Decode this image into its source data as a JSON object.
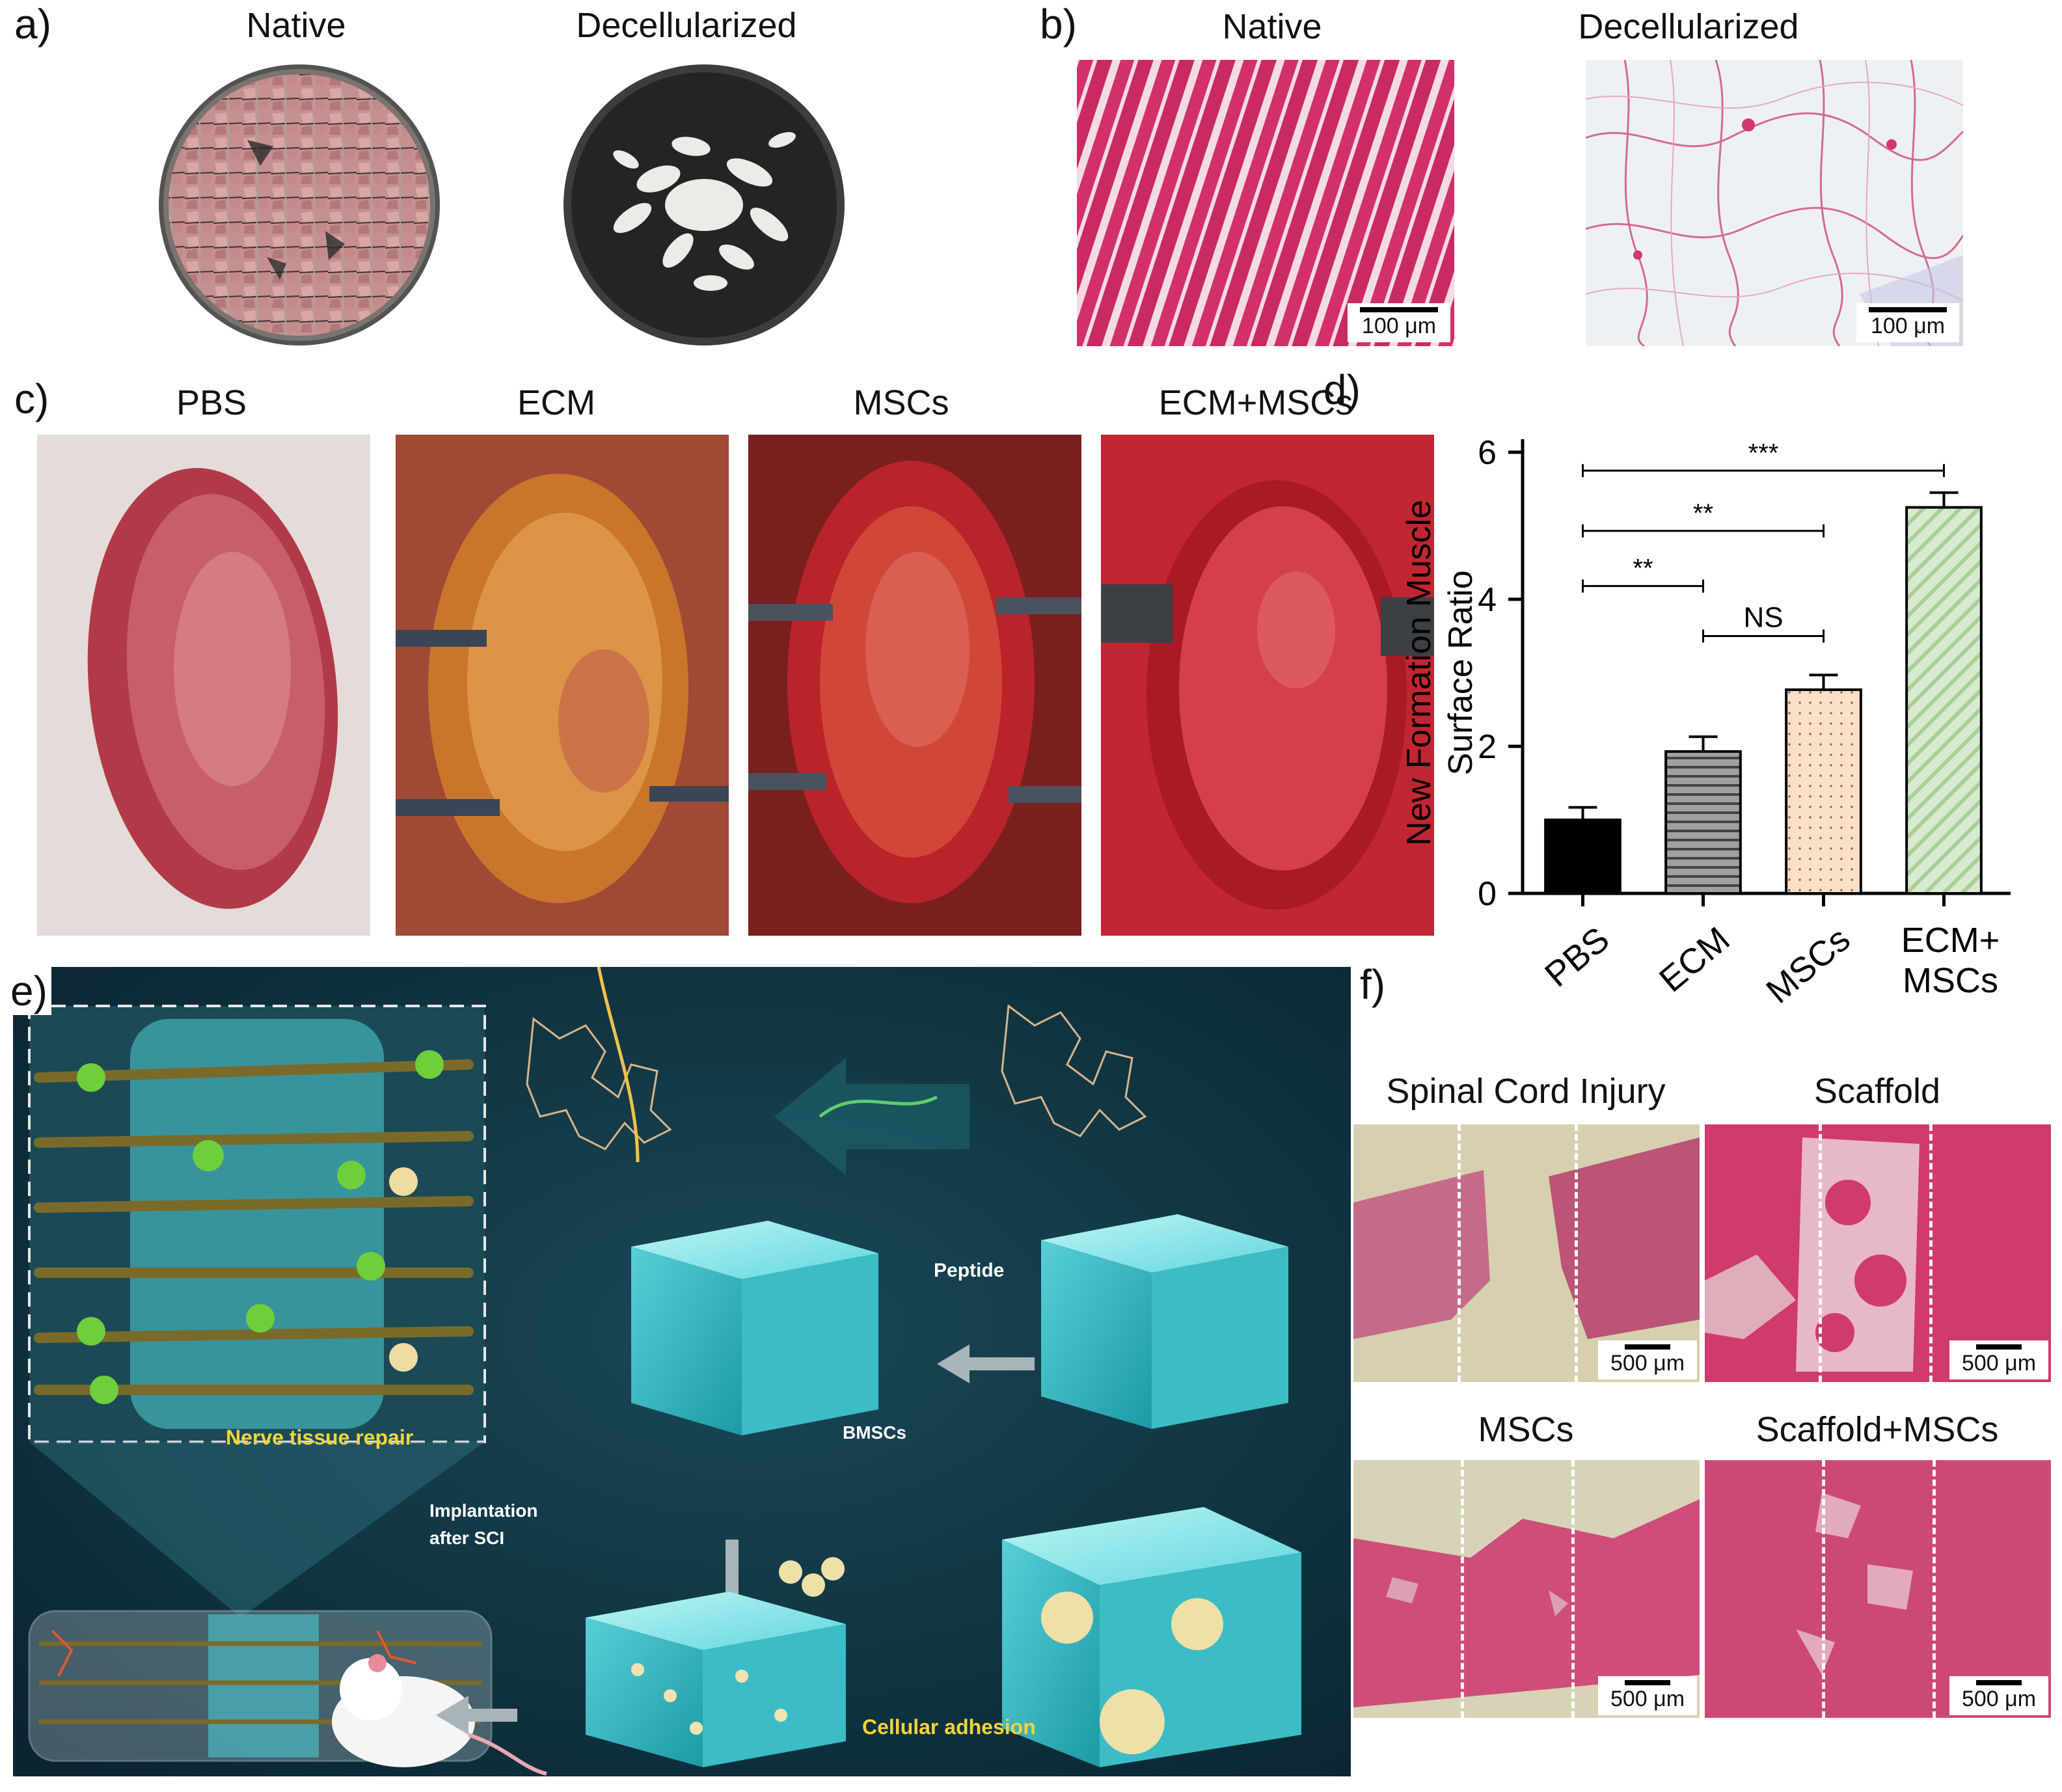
{
  "panels": {
    "a": {
      "label": "a)",
      "native_title": "Native",
      "decell_title": "Decellularized"
    },
    "b": {
      "label": "b)",
      "native_title": "Native",
      "decell_title": "Decellularized",
      "scale_native": "100 μm",
      "scale_decell": "100 μm"
    },
    "c": {
      "label": "c)",
      "titles": [
        "PBS",
        "ECM",
        "MSCs",
        "ECM+MSCs"
      ]
    },
    "d": {
      "label": "d)"
    },
    "e": {
      "label": "e)",
      "peptide": "Peptide",
      "bmscs": "BMSCs",
      "nerve_repair": "Nerve tissue repair",
      "implant_line1": "Implantation",
      "implant_line2": "after SCI",
      "cell_adhesion": "Cellular adhesion"
    },
    "f": {
      "label": "f)",
      "titles": [
        "Spinal Cord Injury",
        "Scaffold",
        "MSCs",
        "Scaffold+MSCs"
      ],
      "scale": "500 μm"
    }
  },
  "chart_data": {
    "type": "bar",
    "categories": [
      "PBS",
      "ECM",
      "MSCs",
      "ECM+\nMSCs"
    ],
    "category_lines": [
      [
        "PBS"
      ],
      [
        "ECM"
      ],
      [
        "MSCs"
      ],
      [
        "ECM+",
        "MSCs"
      ]
    ],
    "values": [
      1.0,
      1.93,
      2.77,
      5.25
    ],
    "errors": [
      0.17,
      0.2,
      0.2,
      0.2
    ],
    "ylabel": "New Formation Muscle\nSurface Ratio",
    "ylabel_lines": [
      "New Formation Muscle",
      "Surface Ratio"
    ],
    "ylim": [
      0,
      6
    ],
    "yticks": [
      0,
      2,
      4,
      6
    ],
    "bar_fills": [
      "#000000",
      "#a0a0a0",
      "#fbe0c8",
      "#d8ebd0"
    ],
    "bar_patterns": [
      "solid",
      "horizontal-lines",
      "dots",
      "diagonal-lines"
    ],
    "significance": [
      {
        "from": 0,
        "to": 3,
        "label": "***"
      },
      {
        "from": 0,
        "to": 2,
        "label": "**"
      },
      {
        "from": 0,
        "to": 1,
        "label": "**"
      },
      {
        "from": 1,
        "to": 2,
        "label": "NS"
      }
    ]
  }
}
